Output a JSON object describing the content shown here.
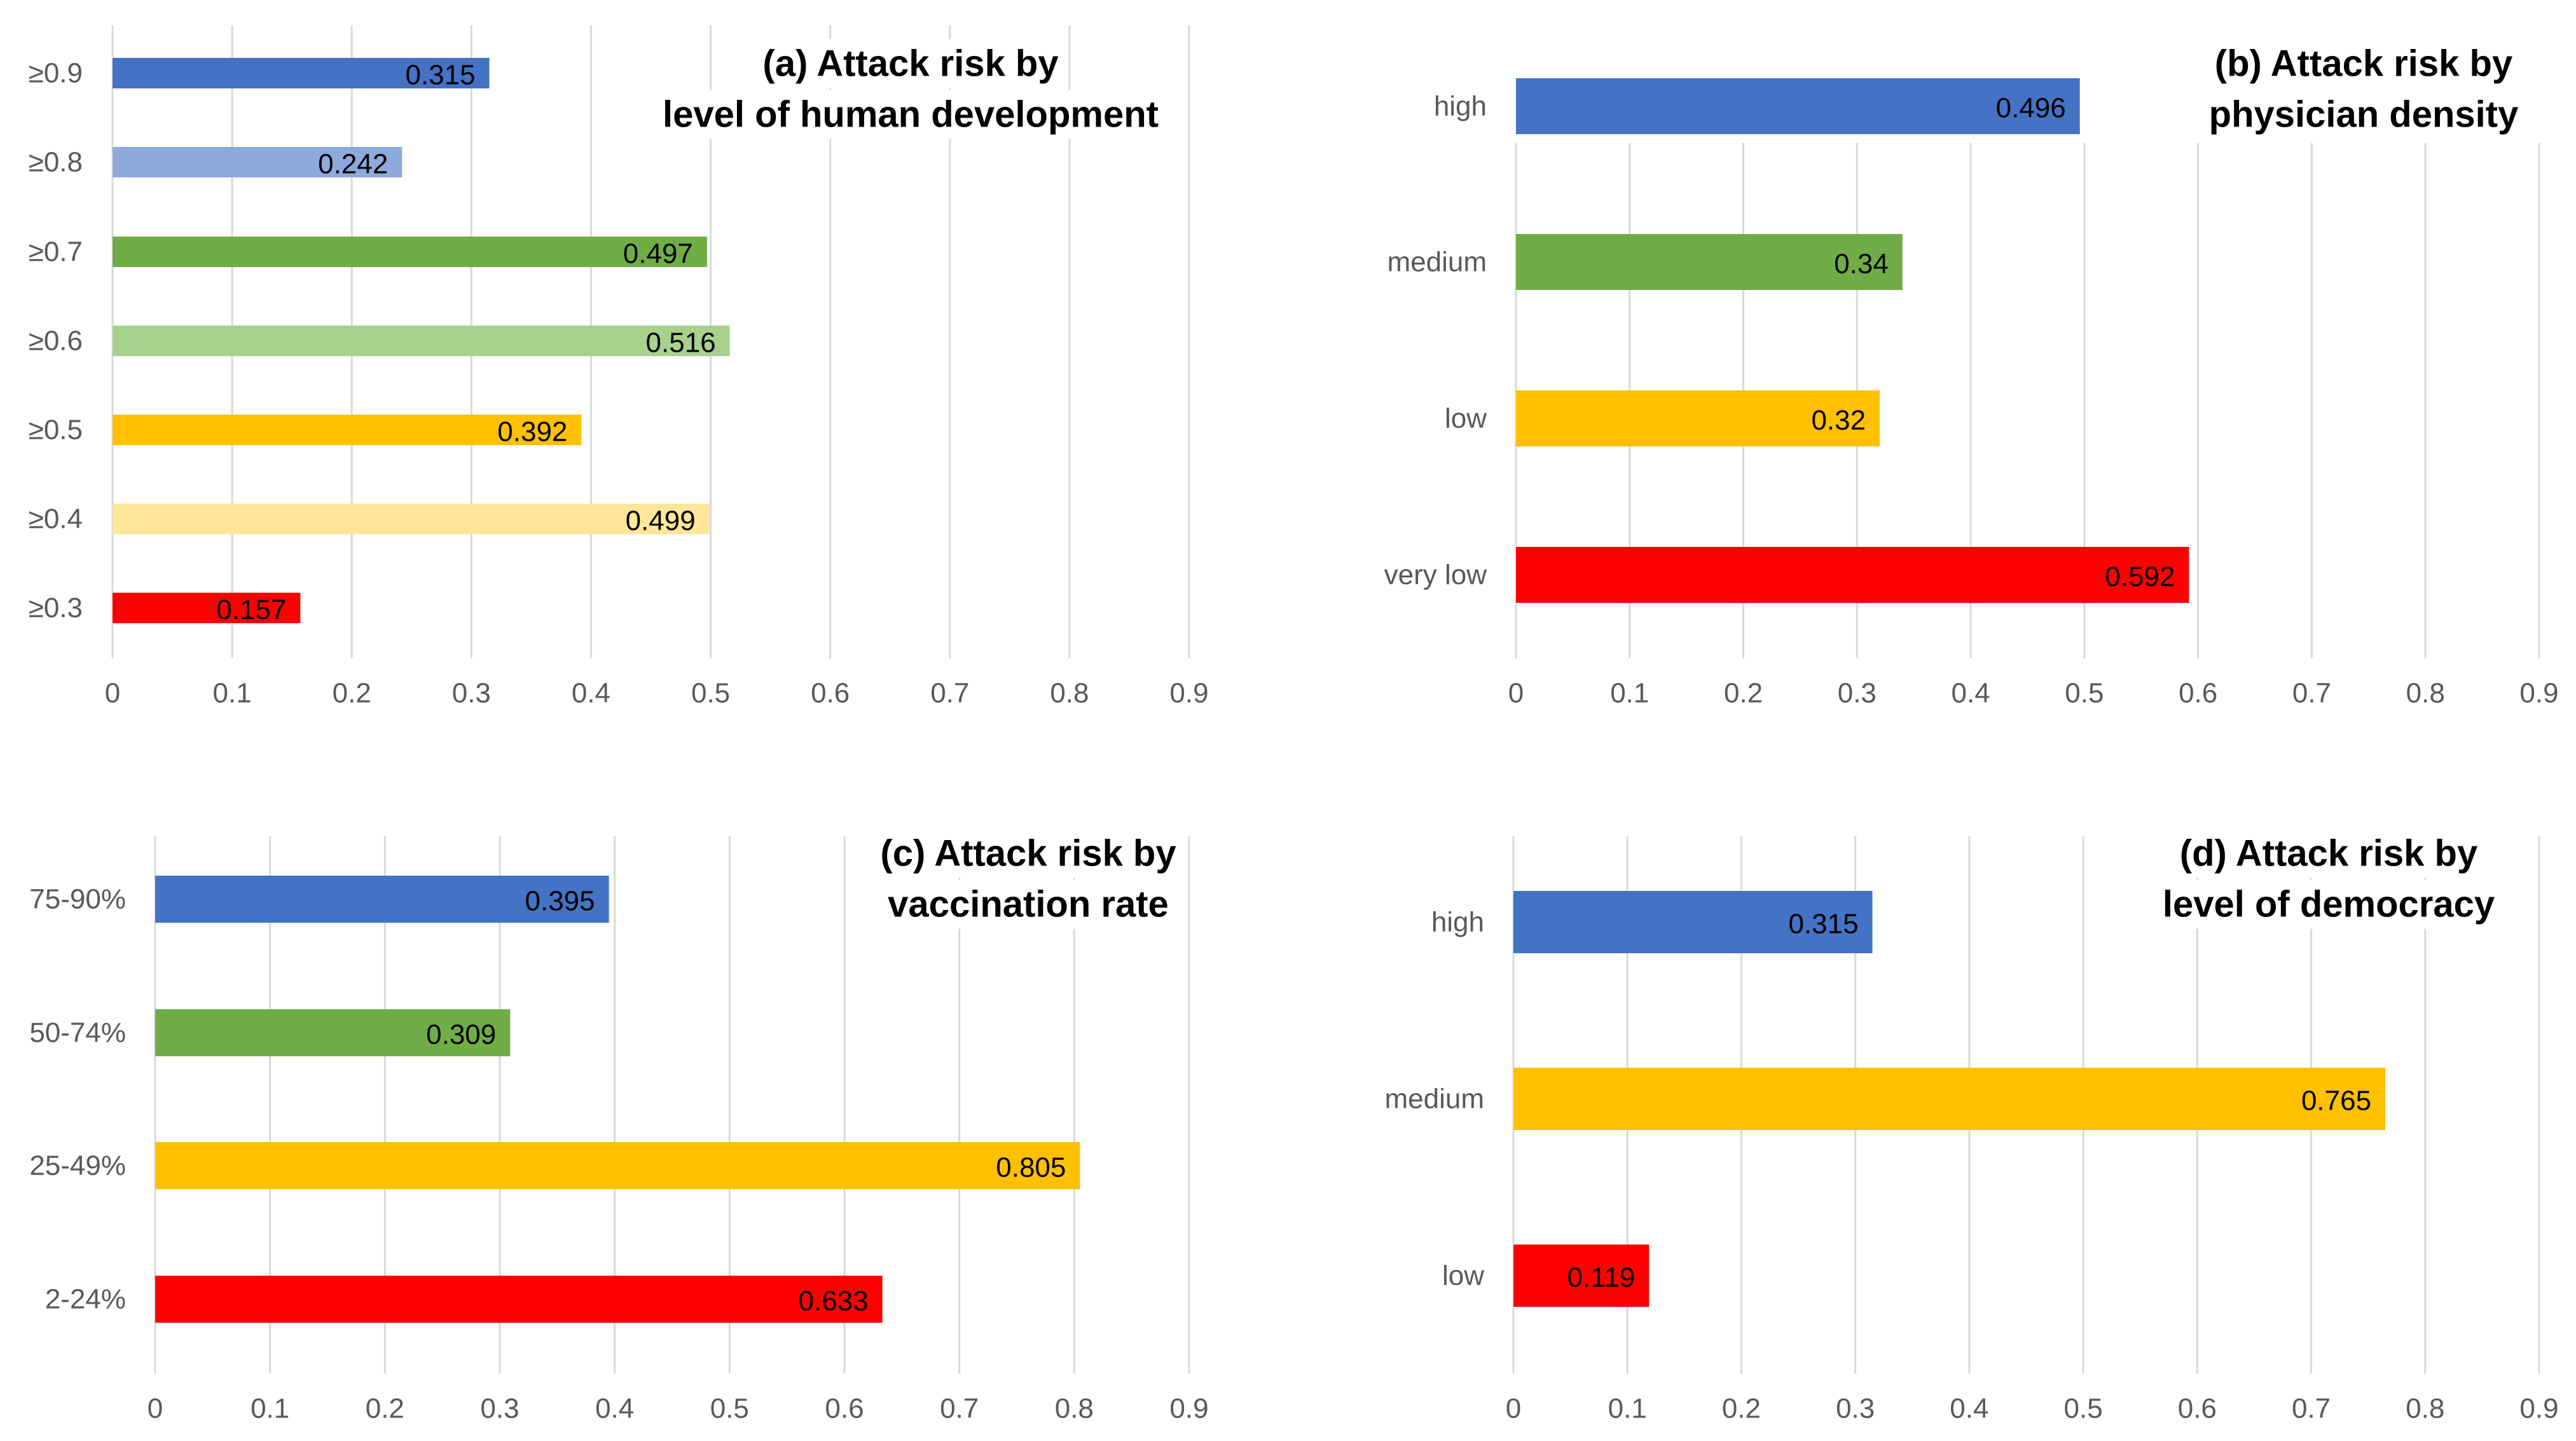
{
  "chart_data": [
    {
      "id": "a",
      "type": "bar",
      "orientation": "horizontal",
      "title": [
        "(a) Attack risk by",
        "level of human development"
      ],
      "categories": [
        "≥0.9",
        "≥0.8",
        "≥0.7",
        "≥0.6",
        "≥0.5",
        "≥0.4",
        "≥0.3"
      ],
      "values": [
        0.315,
        0.242,
        0.497,
        0.516,
        0.392,
        0.499,
        0.157
      ],
      "value_labels": [
        "0.315",
        "0.242",
        "0.497",
        "0.516",
        "0.392",
        "0.499",
        "0.157"
      ],
      "colors": [
        "#4472C4",
        "#8EA9DB",
        "#70AD47",
        "#A9D18E",
        "#FFC000",
        "#FFE699",
        "#FF0000"
      ],
      "xlim": [
        0,
        0.9
      ],
      "xticks": [
        "0",
        "0.1",
        "0.2",
        "0.3",
        "0.4",
        "0.5",
        "0.6",
        "0.7",
        "0.8",
        "0.9"
      ],
      "grid": true
    },
    {
      "id": "b",
      "type": "bar",
      "orientation": "horizontal",
      "title": [
        "(b) Attack risk by",
        "physician density"
      ],
      "categories": [
        "high",
        "medium",
        "low",
        "very low"
      ],
      "values": [
        0.496,
        0.34,
        0.32,
        0.592
      ],
      "value_labels": [
        "0.496",
        "0.34",
        "0.32",
        "0.592"
      ],
      "colors": [
        "#4472C4",
        "#70AD47",
        "#FFC000",
        "#FF0000"
      ],
      "xlim": [
        0,
        0.9
      ],
      "xticks": [
        "0",
        "0.1",
        "0.2",
        "0.3",
        "0.4",
        "0.5",
        "0.6",
        "0.7",
        "0.8",
        "0.9"
      ],
      "grid": true
    },
    {
      "id": "c",
      "type": "bar",
      "orientation": "horizontal",
      "title": [
        "(c) Attack risk by",
        "vaccination rate"
      ],
      "categories": [
        "75-90%",
        "50-74%",
        "25-49%",
        "2-24%"
      ],
      "values": [
        0.395,
        0.309,
        0.805,
        0.633
      ],
      "value_labels": [
        "0.395",
        "0.309",
        "0.805",
        "0.633"
      ],
      "colors": [
        "#4472C4",
        "#70AD47",
        "#FFC000",
        "#FF0000"
      ],
      "xlim": [
        0,
        0.9
      ],
      "xticks": [
        "0",
        "0.1",
        "0.2",
        "0.3",
        "0.4",
        "0.5",
        "0.6",
        "0.7",
        "0.8",
        "0.9"
      ],
      "grid": true
    },
    {
      "id": "d",
      "type": "bar",
      "orientation": "horizontal",
      "title": [
        "(d) Attack risk by",
        "level of democracy"
      ],
      "categories": [
        "high",
        "medium",
        "low"
      ],
      "values": [
        0.315,
        0.765,
        0.119
      ],
      "value_labels": [
        "0.315",
        "0.765",
        "0.119"
      ],
      "colors": [
        "#4472C4",
        "#FFC000",
        "#FF0000"
      ],
      "xlim": [
        0,
        0.9
      ],
      "xticks": [
        "0",
        "0.1",
        "0.2",
        "0.3",
        "0.4",
        "0.5",
        "0.6",
        "0.7",
        "0.8",
        "0.9"
      ],
      "grid": true
    }
  ]
}
